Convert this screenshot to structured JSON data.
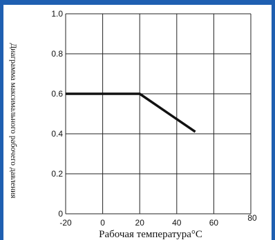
{
  "colors": {
    "border_blue": "#1f5fb1",
    "line": "#111111",
    "grid": "#222222"
  },
  "chart_data": {
    "type": "line",
    "title": "",
    "xlabel": "Рабочая температура°C",
    "ylabel": "Диаграмма максимального рабочего давления",
    "xlim": [
      -20,
      80
    ],
    "ylim": [
      0,
      1.0
    ],
    "x_ticks": [
      -20,
      0,
      20,
      40,
      60,
      80
    ],
    "y_ticks": [
      0,
      0.2,
      0.4,
      0.6,
      0.8,
      1.0
    ],
    "x_tick_labels": [
      "-20",
      "0",
      "20",
      "40",
      "60",
      "80"
    ],
    "y_tick_labels": [
      "0",
      "0.2",
      "0.4",
      "0.6",
      "0.8",
      "1.0"
    ],
    "grid": true,
    "series": [
      {
        "x": [
          -20,
          0,
          20,
          50
        ],
        "y": [
          0.6,
          0.6,
          0.6,
          0.41
        ]
      }
    ]
  }
}
